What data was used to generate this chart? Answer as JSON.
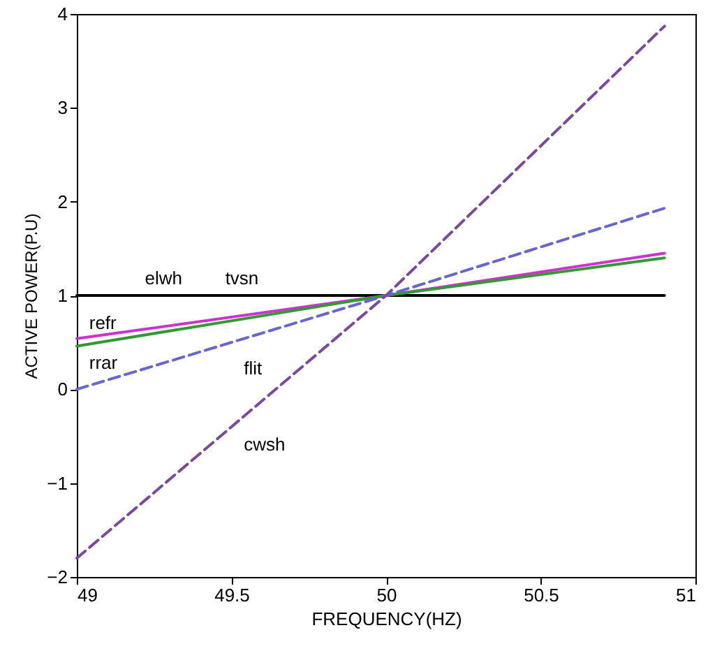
{
  "chart_data": {
    "type": "line",
    "xlabel": "FREQUENCY(HZ)",
    "ylabel": "ACTIVE POWER(P.U)",
    "xlim": [
      49,
      51
    ],
    "xticks": [
      49,
      49.5,
      50,
      50.5,
      51
    ],
    "ylim": [
      -2,
      4
    ],
    "yticks": [
      -2,
      -1,
      0,
      1,
      2,
      3,
      4
    ],
    "grid": false,
    "series": [
      {
        "color": "#000000",
        "line_style": "solid",
        "x": [
          49,
          50,
          50.9
        ],
        "values": [
          1,
          1,
          1
        ]
      },
      {
        "color": "#cc33cc",
        "line_style": "solid",
        "x": [
          49,
          50,
          50.9
        ],
        "values": [
          0.54,
          1,
          1.45
        ]
      },
      {
        "color": "#339933",
        "line_style": "solid",
        "x": [
          49,
          50,
          50.9
        ],
        "values": [
          0.46,
          1,
          1.4
        ]
      },
      {
        "color": "#6666cc",
        "line_style": "dashed",
        "x": [
          49,
          50,
          50.9
        ],
        "values": [
          0,
          1,
          1.93
        ]
      },
      {
        "color": "#7a4a9a",
        "line_style": "dashed",
        "x": [
          49,
          50,
          50.9
        ],
        "values": [
          -1.8,
          1,
          3.87
        ]
      }
    ],
    "annotations": [
      "elwh",
      "tvsn",
      "refr",
      "rrar",
      "flit",
      "cwsh"
    ]
  }
}
